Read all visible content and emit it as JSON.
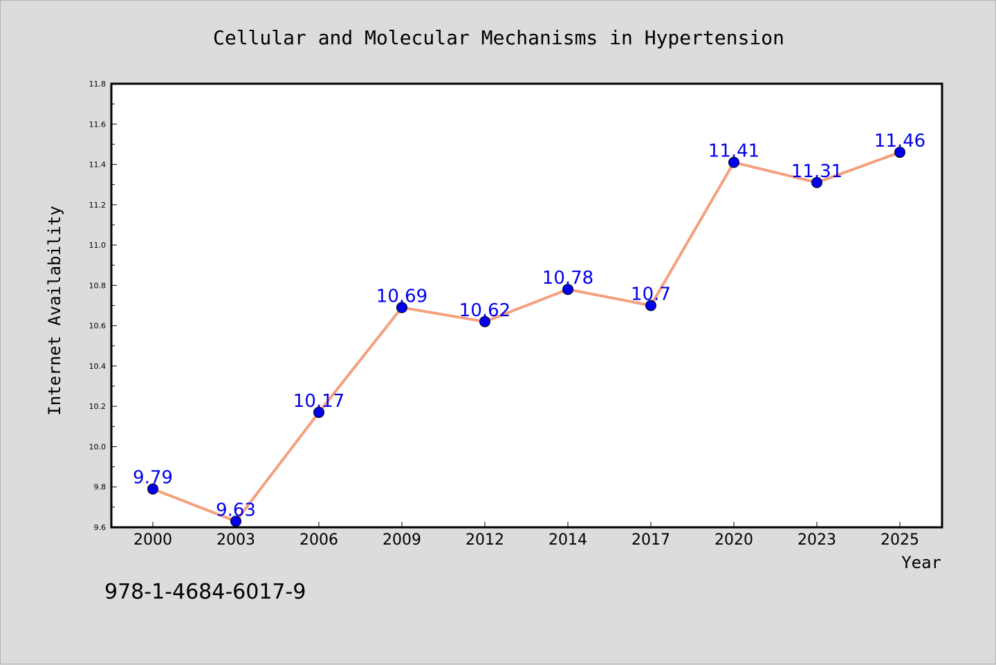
{
  "chart_data": {
    "type": "line",
    "title": "Cellular and Molecular Mechanisms in Hypertension",
    "xlabel": "Year",
    "ylabel": "Internet Availability",
    "categories": [
      "2000",
      "2003",
      "2006",
      "2009",
      "2012",
      "2014",
      "2017",
      "2020",
      "2023",
      "2025"
    ],
    "series": [
      {
        "values": [
          9.79,
          9.63,
          10.17,
          10.69,
          10.62,
          10.78,
          10.7,
          11.41,
          11.31,
          11.46
        ],
        "labels": [
          "9.79",
          "9.63",
          "10.17",
          "10.69",
          "10.62",
          "10.78",
          "10.7",
          "11.41",
          "11.31",
          "11.46"
        ]
      }
    ],
    "ylim": [
      9.6,
      11.8
    ],
    "yticks": [
      "9.6",
      "9.8",
      "10.0",
      "10.2",
      "10.4",
      "10.6",
      "10.8",
      "11.0",
      "11.2",
      "11.4",
      "11.6",
      "11.8"
    ],
    "grid": false,
    "legend": "none",
    "line_color": "#f4a07e",
    "marker_color": "#0000ee",
    "label_color": "#0000ee"
  },
  "footer": {
    "isbn": "978-1-4684-6017-9"
  }
}
